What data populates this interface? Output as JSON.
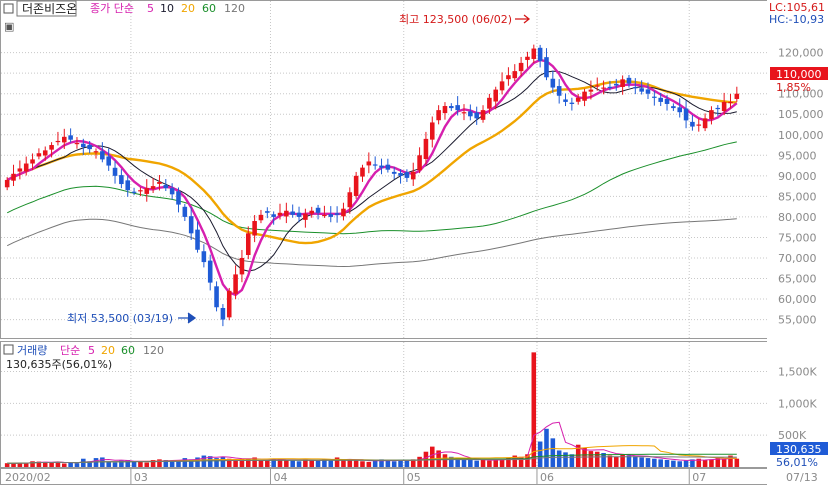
{
  "colors": {
    "up": "#e8141c",
    "down": "#1f5bd6",
    "ma5": "#d61fae",
    "ma10": "#1a1a2e",
    "ma20": "#f0a500",
    "ma60": "#1a8f2a",
    "ma120": "#777777",
    "label_blue": "#1f4fb8",
    "label_red": "#d41818",
    "grid": "#c8c8c8",
    "axis_text": "#8a8a8a"
  },
  "price_panel": {
    "stock_name": "더존비즈온",
    "legend": {
      "prefix": "종가 단순",
      "periods": [
        {
          "label": "5",
          "color_key": "ma5"
        },
        {
          "label": "10",
          "color_key": "ma10"
        },
        {
          "label": "20",
          "color_key": "ma20"
        },
        {
          "label": "60",
          "color_key": "ma60"
        },
        {
          "label": "120",
          "color_key": "ma120"
        }
      ]
    },
    "lc_label": "LC:105,61",
    "hc_label": "HC:-10,93",
    "current_price_label": "110,000",
    "current_change_label": "1,85%",
    "high_annotation": "최고 123,500 (06/02)",
    "low_annotation": "최저 53,500 (03/19)"
  },
  "volume_panel": {
    "legend_title": "거래량",
    "legend_prefix": "단순",
    "periods": [
      {
        "label": "5",
        "color_key": "ma5"
      },
      {
        "label": "20",
        "color_key": "ma20"
      },
      {
        "label": "60",
        "color_key": "ma60"
      },
      {
        "label": "120",
        "color_key": "ma120"
      }
    ],
    "current_label": "130,635주(56,01%)",
    "current_value_label": "130,635",
    "current_pct_label": "56,01%"
  },
  "x_axis": {
    "labels": [
      {
        "text": "2020/02",
        "index": 0
      },
      {
        "text": "03",
        "index": 20
      },
      {
        "text": "04",
        "index": 42
      },
      {
        "text": "05",
        "index": 63
      },
      {
        "text": "06",
        "index": 84
      },
      {
        "text": "07",
        "index": 108
      }
    ],
    "date_box": "07/13"
  },
  "chart_data": {
    "type": "candlestick",
    "price_ticks": [
      "120,000",
      "115,000",
      "110,000",
      "105,000",
      "100,000",
      "95,000",
      "90,000",
      "85,000",
      "80,000",
      "75,000",
      "70,000",
      "65,000",
      "60,000",
      "55,000"
    ],
    "volume_ticks": [
      "1,500K",
      "1,000K",
      "500K"
    ],
    "ylim_price": [
      51000,
      126000
    ],
    "ylim_volume": [
      0,
      1900000
    ],
    "high": {
      "value": 123500,
      "date": "06/02"
    },
    "low": {
      "value": 53500,
      "date": "03/19"
    },
    "close_series": [
      89000,
      90500,
      91800,
      93000,
      94000,
      95500,
      96200,
      97500,
      98500,
      99500,
      98800,
      98000,
      97000,
      96500,
      96000,
      94000,
      92500,
      90000,
      88000,
      86500,
      86000,
      86500,
      87000,
      87500,
      88500,
      87000,
      85500,
      83000,
      80000,
      76000,
      72000,
      69000,
      64000,
      58000,
      55000,
      62000,
      66000,
      70000,
      76000,
      79000,
      80500,
      81000,
      80000,
      81000,
      81500,
      80500,
      80000,
      80800,
      81500,
      81000,
      80500,
      80000,
      80500,
      82000,
      86000,
      90000,
      92000,
      93500,
      92500,
      92000,
      91500,
      90500,
      90000,
      89500,
      91000,
      95000,
      99000,
      103000,
      106000,
      107000,
      106500,
      106000,
      105500,
      104500,
      104000,
      106000,
      109000,
      111000,
      113000,
      114500,
      115500,
      117500,
      119000,
      121000,
      118000,
      114000,
      111500,
      109500,
      108000,
      107500,
      109000,
      110500,
      111000,
      112000,
      111500,
      111500,
      112000,
      113500,
      112500,
      111500,
      110500,
      110000,
      109000,
      108000,
      107500,
      106500,
      105500,
      103500,
      102000,
      102500,
      104000,
      106000,
      106500,
      108000,
      108000,
      110000
    ],
    "volume_series": [
      60000,
      55000,
      70000,
      60000,
      90000,
      85000,
      80000,
      65000,
      80000,
      55000,
      70000,
      60000,
      130000,
      90000,
      140000,
      150000,
      80000,
      70000,
      100000,
      110000,
      90000,
      80000,
      70000,
      110000,
      120000,
      110000,
      100000,
      90000,
      140000,
      120000,
      150000,
      180000,
      170000,
      140000,
      160000,
      130000,
      110000,
      120000,
      130000,
      150000,
      110000,
      100000,
      120000,
      130000,
      110000,
      100000,
      90000,
      120000,
      110000,
      100000,
      120000,
      100000,
      150000,
      110000,
      120000,
      100000,
      90000,
      80000,
      100000,
      120000,
      110000,
      90000,
      100000,
      100000,
      120000,
      160000,
      240000,
      320000,
      260000,
      200000,
      160000,
      140000,
      120000,
      110000,
      100000,
      110000,
      100000,
      120000,
      130000,
      150000,
      180000,
      160000,
      200000,
      1800000,
      400000,
      600000,
      450000,
      260000,
      230000,
      200000,
      350000,
      300000,
      250000,
      240000,
      220000,
      180000,
      160000,
      200000,
      180000,
      170000,
      150000,
      140000,
      130000,
      120000,
      110000,
      100000,
      90000,
      100000,
      120000,
      130000,
      110000,
      120000,
      140000,
      120000,
      180000,
      130635
    ]
  }
}
